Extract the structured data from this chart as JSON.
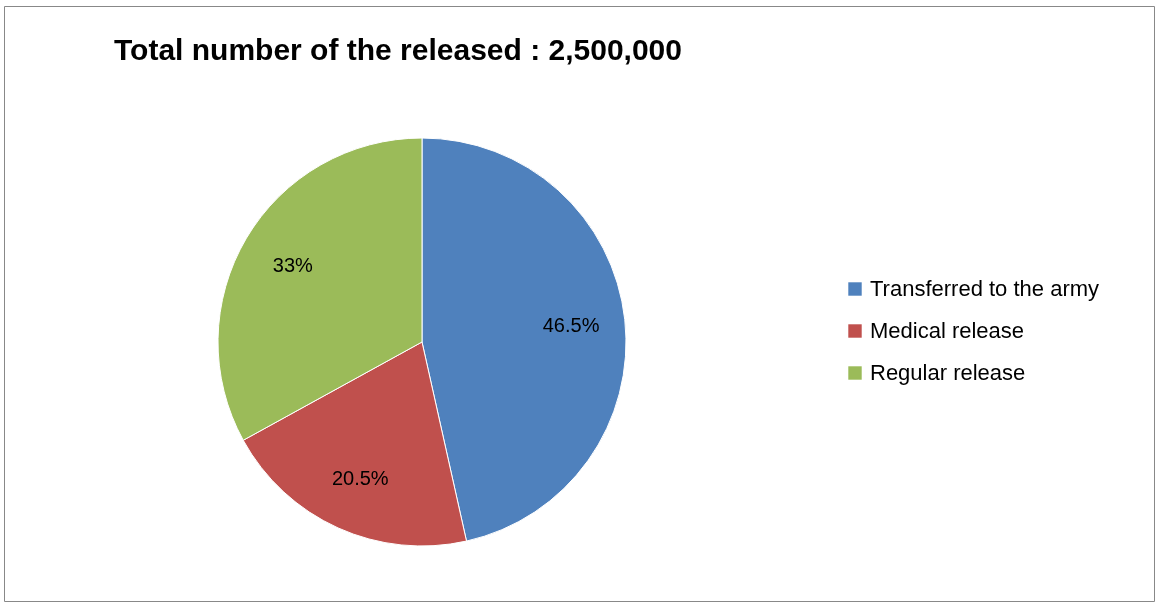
{
  "chart_data": {
    "type": "pie",
    "title": "Total number of the released : 2,500,000",
    "categories": [
      "Transferred to the army",
      "Medical release",
      "Regular release"
    ],
    "values": [
      46.5,
      20.5,
      33
    ],
    "colors": [
      "#4f81bd",
      "#c0504d",
      "#9bbb59"
    ],
    "value_labels": [
      "46.5%",
      "20.5%",
      "33%"
    ],
    "legend": "right"
  }
}
